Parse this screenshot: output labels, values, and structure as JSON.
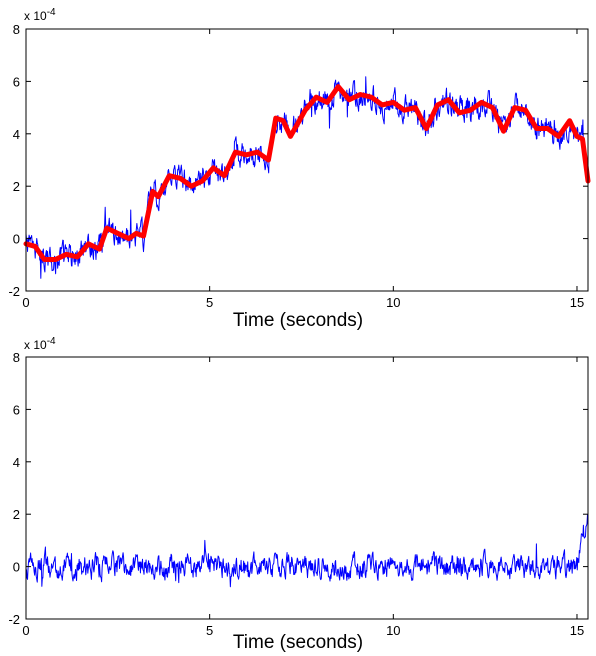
{
  "chart_data": [
    {
      "type": "line",
      "xlabel": "Time (seconds)",
      "ylabel": "",
      "xlim": [
        0,
        15.3
      ],
      "ylim": [
        -2,
        8
      ],
      "xticks": [
        0,
        5,
        10,
        15
      ],
      "yticks": [
        -2,
        0,
        2,
        4,
        6,
        8
      ],
      "xtick_labels": [
        "0",
        "5",
        "10",
        "15"
      ],
      "ytick_labels": [
        "-2",
        "0",
        "2",
        "4",
        "6",
        "8"
      ],
      "exponent_label": {
        "base": "x 10",
        "power": "-4"
      },
      "grid": false,
      "series": [
        {
          "style": "noisy",
          "color": "#0000ff",
          "follows": "trend",
          "noise_amplitude": 0.55
        },
        {
          "style": "smooth",
          "color": "#ff0000",
          "x": [
            0,
            0.25,
            0.5,
            0.8,
            1.1,
            1.4,
            1.7,
            2.0,
            2.2,
            2.5,
            2.8,
            3.0,
            3.2,
            3.45,
            3.6,
            3.9,
            4.2,
            4.5,
            4.8,
            5.1,
            5.4,
            5.7,
            6.0,
            6.3,
            6.6,
            6.8,
            7.0,
            7.2,
            7.6,
            7.9,
            8.2,
            8.5,
            8.8,
            9.1,
            9.4,
            9.7,
            10.0,
            10.3,
            10.6,
            10.9,
            11.2,
            11.5,
            11.8,
            12.1,
            12.4,
            12.7,
            13.0,
            13.3,
            13.6,
            13.9,
            14.2,
            14.5,
            14.8,
            15.0,
            15.15,
            15.3
          ],
          "y": [
            -0.2,
            -0.3,
            -0.8,
            -0.8,
            -0.6,
            -0.7,
            -0.2,
            -0.4,
            0.4,
            0.2,
            0.0,
            0.2,
            0.1,
            1.8,
            1.6,
            2.4,
            2.3,
            2.0,
            2.2,
            2.7,
            2.4,
            3.3,
            3.2,
            3.3,
            3.0,
            4.6,
            4.5,
            3.9,
            4.9,
            5.4,
            5.2,
            5.8,
            5.3,
            5.5,
            5.4,
            5.1,
            5.2,
            4.9,
            5.0,
            4.2,
            5.1,
            5.3,
            4.8,
            4.9,
            5.2,
            5.0,
            4.1,
            5.0,
            4.9,
            4.2,
            4.2,
            3.9,
            4.5,
            3.9,
            3.8,
            2.2
          ]
        }
      ]
    },
    {
      "type": "line",
      "xlabel": "Time (seconds)",
      "ylabel": "",
      "xlim": [
        0,
        15.3
      ],
      "ylim": [
        -2,
        8
      ],
      "xticks": [
        0,
        5,
        10,
        15
      ],
      "yticks": [
        -2,
        0,
        2,
        4,
        6,
        8
      ],
      "xtick_labels": [
        "0",
        "5",
        "10",
        "15"
      ],
      "ytick_labels": [
        "-2",
        "0",
        "2",
        "4",
        "6",
        "8"
      ],
      "exponent_label": {
        "base": "x 10",
        "power": "-4"
      },
      "grid": false,
      "series": [
        {
          "style": "noisy",
          "color": "#0000ff",
          "baseline": 0,
          "noise_amplitude": 0.5,
          "tail": {
            "x": [
              14.9,
              15.1,
              15.3
            ],
            "y": [
              0.0,
              0.8,
              1.9
            ]
          }
        }
      ]
    }
  ]
}
